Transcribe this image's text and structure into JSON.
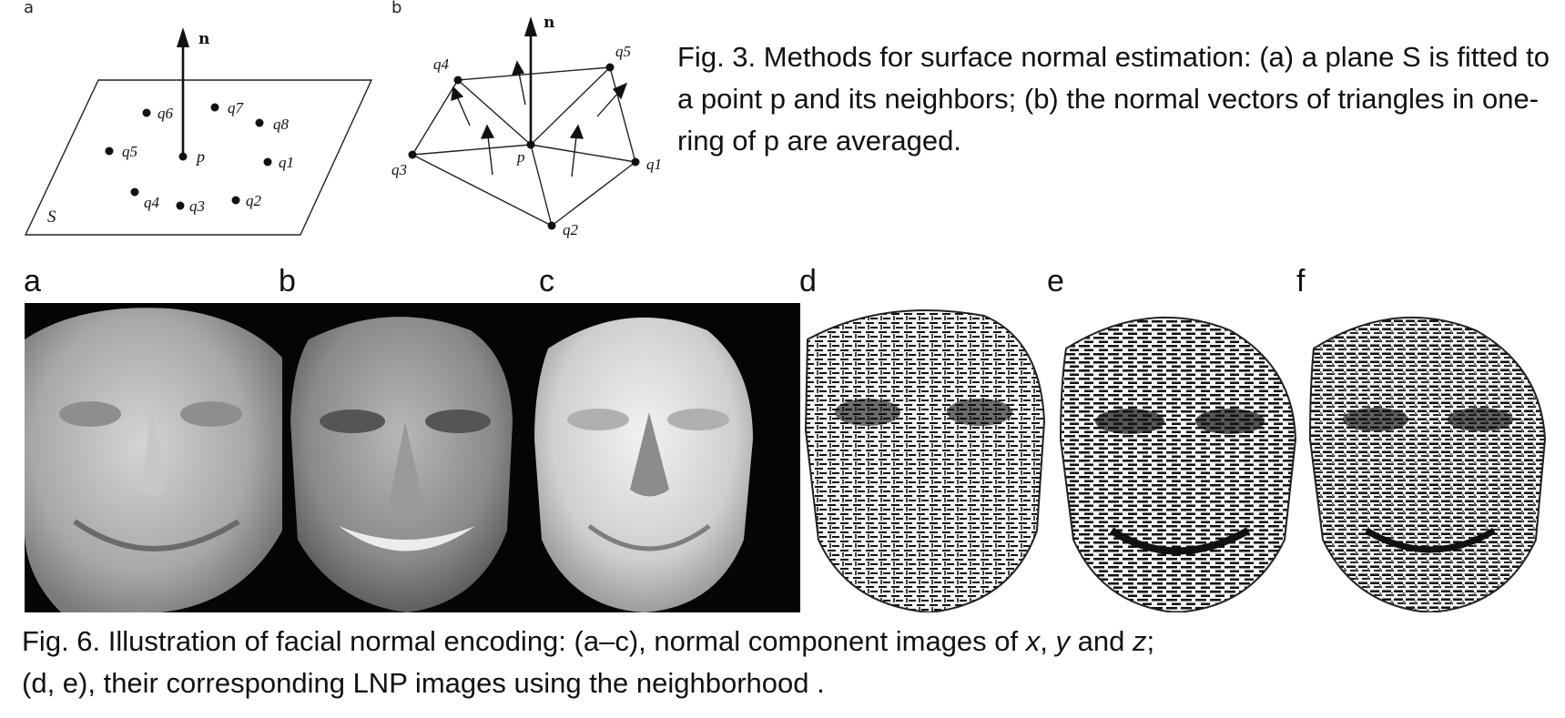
{
  "fig3": {
    "panel_a_letter": "a",
    "panel_b_letter": "b",
    "diagram_a": {
      "normal_label": "n",
      "plane_label": "S",
      "center_label": "p",
      "points": [
        "q1",
        "q2",
        "q3",
        "q4",
        "q5",
        "q6",
        "q7",
        "q8"
      ]
    },
    "diagram_b": {
      "normal_label": "n",
      "center_label": "p",
      "points": [
        "q1",
        "q2",
        "q3",
        "q4",
        "q5"
      ]
    },
    "caption": "Fig. 3. Methods for surface normal estimation: (a) a plane S is fitted to a point p and its neighbors; (b) the normal vectors of triangles in one-ring of p are averaged."
  },
  "fig6": {
    "panel_letters": [
      "a",
      "b",
      "c",
      "d",
      "e",
      "f"
    ],
    "caption_line1_prefix": "Fig. 6. Illustration of facial normal encoding: (a–c), normal component images of ",
    "caption_x": "x",
    "caption_sep1": ", ",
    "caption_y": "y",
    "caption_sep2": " and ",
    "caption_z": "z",
    "caption_line1_end": ";",
    "caption_line2": "(d, e), their corresponding LNP images using the neighborhood ."
  }
}
